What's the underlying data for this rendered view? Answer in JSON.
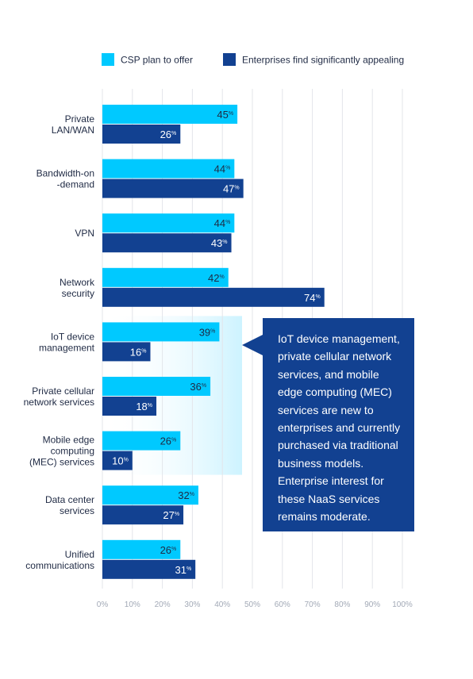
{
  "chart_data": {
    "type": "bar",
    "orientation": "horizontal",
    "categories": [
      "Private\nLAN/WAN",
      "Bandwidth-on\n-demand",
      "VPN",
      "Network\nsecurity",
      "IoT device\nmanagement",
      "Private cellular\nnetwork services",
      "Mobile edge\ncomputing\n(MEC) services",
      "Data center\nservices",
      "Unified\ncommunications"
    ],
    "series": [
      {
        "name": "CSP plan to offer",
        "color": "#00C9FF",
        "values": [
          45,
          44,
          44,
          42,
          39,
          36,
          26,
          32,
          26
        ]
      },
      {
        "name": "Enterprises find significantly appealing",
        "color": "#124191",
        "values": [
          26,
          47,
          43,
          74,
          16,
          18,
          10,
          27,
          31
        ]
      }
    ],
    "value_suffix": "%",
    "xlim": [
      0,
      100
    ],
    "xticks": [
      "0%",
      "10%",
      "20%",
      "30%",
      "40%",
      "50%",
      "60%",
      "70%",
      "80%",
      "90%",
      "100%"
    ],
    "grid": true,
    "legend_position": "top",
    "highlighted_categories": [
      "IoT device\nmanagement",
      "Private cellular\nnetwork services",
      "Mobile edge\ncomputing\n(MEC) services"
    ],
    "highlight_color": "#D9F6FF",
    "label_color": "#1F2A44",
    "tick_color": "#A2A9B6",
    "grid_color": "#E3E5EA"
  },
  "callout": {
    "text": "IoT device management, private cellular network services, and mobile edge computing (MEC) services are new to enterprises and currently purchased via traditional business models. Enterprise interest for these NaaS services remains moderate."
  }
}
